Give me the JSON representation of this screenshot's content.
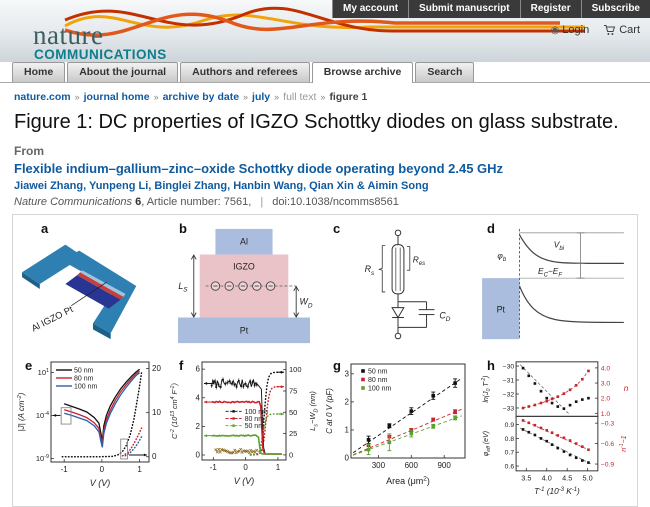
{
  "colors": {
    "link": "#105a9e",
    "teal": "#0e7d8c",
    "dark_teal": "#3d5f63",
    "button_bg": "#3a3a3a",
    "chart_black": "#111111",
    "chart_red": "#c8242b",
    "chart_blue": "#2b5fac",
    "chart_green": "#5ba12f",
    "noise_olive": "#8a6a1f"
  },
  "header": {
    "account_buttons": [
      {
        "label": "My account"
      },
      {
        "label": "Submit manuscript"
      },
      {
        "label": "Register"
      },
      {
        "label": "Subscribe"
      }
    ],
    "login_icon": "◉",
    "login_label": "Login",
    "cart_label": "Cart",
    "logo_word": "nature",
    "logo_subword": "COMMUNICATIONS"
  },
  "tabs": {
    "items": [
      {
        "label": "Home"
      },
      {
        "label": "About the journal"
      },
      {
        "label": "Authors and referees"
      },
      {
        "label": "Browse archive",
        "active": true
      },
      {
        "label": "Search"
      }
    ]
  },
  "breadcrumb": {
    "separator": "»",
    "items": [
      {
        "label": "nature.com"
      },
      {
        "label": "journal home"
      },
      {
        "label": "archive by date"
      },
      {
        "label": "july"
      },
      {
        "label": "full text"
      },
      {
        "label": "figure 1"
      }
    ]
  },
  "article": {
    "figure_title": "Figure 1: DC properties of IGZO Schottky diodes on glass substrate.",
    "from_label": "From",
    "paper_title": "Flexible indium–gallium–zinc–oxide Schottky diode operating beyond 2.45 GHz",
    "authors": "Jiawei Zhang, Yunpeng Li, Binglei Zhang, Hanbin Wang, Qian Xin & Aimin Song",
    "journal_name": "Nature Communications",
    "journal_volume": "6",
    "article_number_label": "Article number:",
    "article_number": "7561,",
    "separator": "|",
    "doi": "doi:10.1038/ncomms8561"
  },
  "figure": {
    "panel_labels": {
      "a": "a",
      "b": "b",
      "c": "c",
      "d": "d",
      "e": "e",
      "f": "f",
      "g": "g",
      "h": "h"
    },
    "panel_a": {
      "annotation": "Al  IGZO Pt"
    },
    "panel_b": {
      "al": "Al",
      "igzo": "IGZO",
      "pt": "Pt",
      "ls": "L_{S}",
      "wd": "W_{D}"
    },
    "panel_c": {
      "rs": "R_{s}",
      "res": "R_{es}",
      "cd": "C_{D}"
    },
    "panel_d": {
      "pt": "Pt",
      "phib": "φ_{b}",
      "vbi": "V_{bi}",
      "ecef": "E_{C}−E_{F}"
    }
  },
  "chart_data": [
    {
      "id": "e",
      "type": "line",
      "xlabel": "V (V)",
      "xlim": [
        -1.35,
        1.25
      ],
      "xticks": [
        -1,
        0,
        1
      ],
      "ylabel": "|J| (A cm^{-2})",
      "ylog": {
        "lim": [
          -9.4,
          2.2
        ],
        "ticks": [
          1,
          -4,
          -9
        ],
        "labels": [
          "10^{1}",
          "10^{-4}",
          "10^{-9}"
        ]
      },
      "yright": {
        "lim": [
          -1.2,
          21.5
        ],
        "ticks": [
          0,
          10,
          20
        ]
      },
      "legend": [
        {
          "name": "50 nm",
          "color": "#111111"
        },
        {
          "name": "80 nm",
          "color": "#c8242b"
        },
        {
          "name": "100 nm",
          "color": "#2b5fac"
        }
      ],
      "series_log10": [
        {
          "name": "50 nm",
          "color": "#111111",
          "points": [
            [
              -1,
              -2.65
            ],
            [
              -0.8,
              -2.95
            ],
            [
              -0.6,
              -3.25
            ],
            [
              -0.4,
              -3.6
            ],
            [
              -0.2,
              -4.25
            ],
            [
              -0.08,
              -4.9
            ],
            [
              -0.02,
              -6.2
            ],
            [
              0.01,
              -7.0
            ],
            [
              0.05,
              -5.2
            ],
            [
              0.12,
              -4.0
            ],
            [
              0.22,
              -2.9
            ],
            [
              0.35,
              -1.9
            ],
            [
              0.5,
              -0.9
            ],
            [
              0.65,
              -0.1
            ],
            [
              0.8,
              0.6
            ],
            [
              0.9,
              1.0
            ],
            [
              1.0,
              1.35
            ]
          ]
        },
        {
          "name": "80 nm",
          "color": "#c8242b",
          "points": [
            [
              -1,
              -3.35
            ],
            [
              -0.8,
              -3.6
            ],
            [
              -0.6,
              -3.9
            ],
            [
              -0.4,
              -4.25
            ],
            [
              -0.2,
              -4.85
            ],
            [
              -0.08,
              -5.5
            ],
            [
              -0.02,
              -6.7
            ],
            [
              0.01,
              -7.3
            ],
            [
              0.05,
              -5.7
            ],
            [
              0.12,
              -4.5
            ],
            [
              0.22,
              -3.4
            ],
            [
              0.35,
              -2.3
            ],
            [
              0.5,
              -1.25
            ],
            [
              0.65,
              -0.4
            ],
            [
              0.8,
              0.35
            ],
            [
              0.9,
              0.8
            ],
            [
              1.0,
              1.15
            ]
          ]
        },
        {
          "name": "100 nm",
          "color": "#2b5fac",
          "points": [
            [
              -1,
              -3.75
            ],
            [
              -0.8,
              -4.0
            ],
            [
              -0.6,
              -4.3
            ],
            [
              -0.4,
              -4.6
            ],
            [
              -0.2,
              -5.2
            ],
            [
              -0.08,
              -5.9
            ],
            [
              -0.02,
              -7.1
            ],
            [
              0.01,
              -7.7
            ],
            [
              0.05,
              -6.1
            ],
            [
              0.12,
              -4.9
            ],
            [
              0.22,
              -3.8
            ],
            [
              0.35,
              -2.7
            ],
            [
              0.5,
              -1.6
            ],
            [
              0.65,
              -0.7
            ],
            [
              0.8,
              0.1
            ],
            [
              0.9,
              0.6
            ],
            [
              1.0,
              0.95
            ]
          ]
        }
      ],
      "series_right_dotted": [
        {
          "name": "50 nm",
          "color": "#111111",
          "points": [
            [
              -1.05,
              0
            ],
            [
              -0.5,
              0
            ],
            [
              0,
              0
            ],
            [
              0.3,
              0.1
            ],
            [
              0.45,
              0.5
            ],
            [
              0.55,
              1.2
            ],
            [
              0.65,
              2.6
            ],
            [
              0.75,
              5
            ],
            [
              0.85,
              8.5
            ],
            [
              0.92,
              12
            ],
            [
              1.0,
              16
            ],
            [
              1.05,
              19
            ]
          ]
        },
        {
          "name": "80 nm",
          "color": "#c8242b",
          "points": [
            [
              0.55,
              0.2
            ],
            [
              0.7,
              1.0
            ],
            [
              0.8,
              2.2
            ],
            [
              0.9,
              3.8
            ],
            [
              1.0,
              5.5
            ],
            [
              1.05,
              6.5
            ]
          ]
        },
        {
          "name": "100 nm",
          "color": "#2b5fac",
          "points": [
            [
              0.62,
              0.2
            ],
            [
              0.75,
              0.9
            ],
            [
              0.85,
              1.8
            ],
            [
              0.95,
              3.0
            ],
            [
              1.05,
              4.5
            ]
          ]
        }
      ],
      "annotation_boxes": [
        {
          "x": [
            -1.08,
            -0.82
          ],
          "ylog": [
            -3.1,
            -5.0
          ]
        },
        {
          "x": [
            0.5,
            0.68
          ],
          "yright": [
            -0.5,
            4.0
          ]
        }
      ]
    },
    {
      "id": "f",
      "type": "line",
      "xlabel": "V (V)",
      "xlim": [
        -1.35,
        1.25
      ],
      "xticks": [
        -1,
        0,
        1
      ],
      "yleft": {
        "label": "C^{-2} (10^{13} cm^{4} F^{-2})",
        "lim": [
          -0.35,
          6.5
        ],
        "ticks": [
          0,
          2,
          4,
          6
        ]
      },
      "yright": {
        "label": "L_{s}−W_{D} (nm)",
        "lim": [
          -6,
          109
        ],
        "ticks": [
          0,
          25,
          50,
          75,
          100
        ]
      },
      "legend": [
        {
          "name": "100 nm",
          "color": "#111111"
        },
        {
          "name": "80 nm",
          "color": "#c8242b"
        },
        {
          "name": "50 nm",
          "color": "#5ba12f"
        }
      ],
      "series_left": [
        {
          "name": "100 nm",
          "color": "#111111",
          "base": 5.0,
          "noise": 0.28,
          "flat_until": 0.42,
          "drop_at": 0.52
        },
        {
          "name": "80 nm",
          "color": "#c8242b",
          "base": 3.7,
          "noise": 0.05,
          "flat_until": 0.44,
          "drop_at": 0.5
        },
        {
          "name": "50 nm",
          "color": "#5ba12f",
          "base": 1.35,
          "noise": 0.04,
          "flat_until": 0.36,
          "drop_at": 0.43
        }
      ],
      "noise_floor": {
        "color": "#8a6a1f",
        "base": 0.27,
        "noise": 0.13,
        "xrange": [
          -0.92,
          0.35
        ]
      },
      "series_right_dotted": [
        {
          "name": "100 nm",
          "color": "#111111",
          "plateau": 97,
          "rise_at": 0.5
        },
        {
          "name": "80 nm",
          "color": "#c8242b",
          "plateau": 80,
          "rise_at": 0.55
        },
        {
          "name": "50 nm",
          "color": "#5ba12f",
          "plateau": 48,
          "rise_at": 0.46
        }
      ]
    },
    {
      "id": "g",
      "type": "scatter",
      "xlabel": "Area (μm^{2})",
      "xlim": [
        50,
        1090
      ],
      "xticks": [
        300,
        600,
        900
      ],
      "ylabel": "C at 0 V (pF)",
      "ylim": [
        0,
        3.35
      ],
      "yticks": [
        0,
        1,
        2,
        3
      ],
      "series": [
        {
          "name": "50 nm",
          "color": "#111111",
          "points": [
            [
              210,
              0.65
            ],
            [
              400,
              1.15
            ],
            [
              600,
              1.67
            ],
            [
              800,
              2.22
            ],
            [
              1000,
              2.67
            ]
          ],
          "err": [
            0.13,
            0.07,
            0.12,
            0.13,
            0.15
          ],
          "fit_slope": 0.00268
        },
        {
          "name": "80 nm",
          "color": "#c8242b",
          "points": [
            [
              210,
              0.46
            ],
            [
              400,
              0.76
            ],
            [
              600,
              1.0
            ],
            [
              800,
              1.37
            ],
            [
              1000,
              1.65
            ]
          ],
          "err": [
            0.05,
            0.04,
            0.05,
            0.05,
            0.07
          ],
          "fit_slope": 0.00164
        },
        {
          "name": "100 nm",
          "color": "#5ba12f",
          "points": [
            [
              210,
              0.3
            ],
            [
              400,
              0.56
            ],
            [
              600,
              0.87
            ],
            [
              800,
              1.13
            ],
            [
              1000,
              1.43
            ]
          ],
          "err": [
            0.18,
            0.3,
            0.12,
            0.07,
            0.07
          ],
          "fit_slope": 0.00142
        }
      ]
    },
    {
      "id": "h",
      "type": "scatter",
      "xlabel": "T^{-1} (10^{-3} K^{-1})",
      "xlim": [
        3.25,
        5.25
      ],
      "xticks": [
        3.5,
        4.0,
        4.5,
        5.0
      ],
      "xtick_labels": [
        "3.5",
        "4.0",
        "4.5",
        "5.0"
      ],
      "top": {
        "yleft": {
          "label": "ln(J_{0} T^{-2})",
          "lim": [
            -33.6,
            -29.7
          ],
          "ticks": [
            -30,
            -31,
            -32,
            -33
          ],
          "labels": [
            "−30",
            "−31",
            "−32",
            "−33"
          ]
        },
        "yright": {
          "label": "n",
          "lim": [
            0.8,
            4.4
          ],
          "ticks": [
            1.0,
            2.0,
            3.0,
            4.0
          ],
          "labels": [
            "1.0",
            "2.0",
            "3.0",
            "4.0"
          ]
        },
        "series_left": {
          "name": "ln(J0 T-2)",
          "color": "#111111",
          "points": [
            [
              3.42,
              -30.15
            ],
            [
              3.56,
              -30.7
            ],
            [
              3.71,
              -31.25
            ],
            [
              3.86,
              -31.8
            ],
            [
              4.0,
              -32.3
            ],
            [
              4.13,
              -32.65
            ],
            [
              4.27,
              -32.9
            ],
            [
              4.42,
              -33.05
            ],
            [
              4.57,
              -32.8
            ],
            [
              4.72,
              -32.55
            ],
            [
              4.87,
              -32.4
            ],
            [
              5.02,
              -32.3
            ]
          ],
          "fit": [
            [
              3.35,
              -29.9
            ],
            [
              4.55,
              -33.45
            ]
          ]
        },
        "series_right": {
          "name": "n",
          "color": "#c8242b",
          "points": [
            [
              3.42,
              1.35
            ],
            [
              3.56,
              1.45
            ],
            [
              3.71,
              1.55
            ],
            [
              3.86,
              1.68
            ],
            [
              4.0,
              1.8
            ],
            [
              4.13,
              1.95
            ],
            [
              4.27,
              2.1
            ],
            [
              4.42,
              2.3
            ],
            [
              4.57,
              2.55
            ],
            [
              4.72,
              2.85
            ],
            [
              4.87,
              3.25
            ],
            [
              5.02,
              3.8
            ]
          ]
        }
      },
      "bottom": {
        "yleft": {
          "label": "φ_{eff} (eV)",
          "lim": [
            0.565,
            0.96
          ],
          "ticks": [
            0.6,
            0.7,
            0.8,
            0.9
          ],
          "labels": [
            "0.6",
            "0.7",
            "0.8",
            "0.9"
          ]
        },
        "yright": {
          "label": "n^{-1}−1",
          "lim": [
            -1.0,
            -0.2
          ],
          "ticks": [
            -0.3,
            -0.6,
            -0.9
          ],
          "labels": [
            "−0.3",
            "−0.6",
            "−0.9"
          ]
        },
        "series_left": {
          "name": "phi_eff",
          "color": "#111111",
          "points": [
            [
              3.42,
              0.865
            ],
            [
              3.56,
              0.845
            ],
            [
              3.71,
              0.825
            ],
            [
              3.86,
              0.8
            ],
            [
              4.0,
              0.78
            ],
            [
              4.13,
              0.755
            ],
            [
              4.27,
              0.73
            ],
            [
              4.42,
              0.705
            ],
            [
              4.57,
              0.68
            ],
            [
              4.72,
              0.66
            ],
            [
              4.87,
              0.64
            ],
            [
              5.02,
              0.625
            ]
          ],
          "fit": [
            [
              3.35,
              0.875
            ],
            [
              5.1,
              0.612
            ]
          ]
        },
        "series_right": {
          "name": "1/n − 1",
          "color": "#c8242b",
          "points": [
            [
              3.42,
              -0.26
            ],
            [
              3.56,
              -0.295
            ],
            [
              3.71,
              -0.33
            ],
            [
              3.86,
              -0.37
            ],
            [
              4.0,
              -0.405
            ],
            [
              4.13,
              -0.44
            ],
            [
              4.27,
              -0.48
            ],
            [
              4.42,
              -0.515
            ],
            [
              4.57,
              -0.555
            ],
            [
              4.72,
              -0.6
            ],
            [
              4.87,
              -0.645
            ],
            [
              5.02,
              -0.69
            ]
          ]
        }
      }
    }
  ]
}
